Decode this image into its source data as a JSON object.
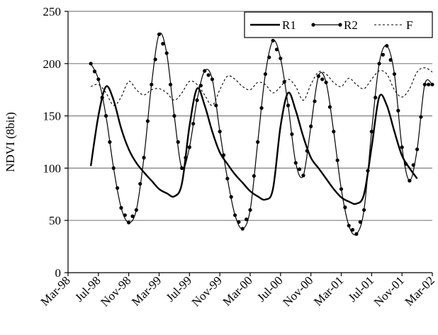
{
  "chart_data": {
    "type": "line",
    "ylabel": "NDVI  (8bit)",
    "xlabel": "",
    "ylim": [
      0,
      250
    ],
    "yticks": [
      0,
      50,
      100,
      150,
      200,
      250
    ],
    "grid": true,
    "legend_position": "top-right",
    "x_ticks": [
      "Mar-98",
      "Jul-98",
      "Nov-98",
      "Mar-99",
      "Jul-99",
      "Nov-99",
      "Mar-00",
      "Jul-00",
      "Nov-00",
      "Mar-01",
      "Jul-01",
      "Nov-01",
      "Mar-02"
    ],
    "series": [
      {
        "name": "R1",
        "style": "solid",
        "points": [
          [
            "Jun-98",
            102
          ],
          [
            "Jul-98",
            150
          ],
          [
            "Aug-98",
            178
          ],
          [
            "Sep-98",
            165
          ],
          [
            "Oct-98",
            138
          ],
          [
            "Nov-98",
            118
          ],
          [
            "Dec-98",
            105
          ],
          [
            "Jan-99",
            96
          ],
          [
            "Feb-99",
            88
          ],
          [
            "Mar-99",
            80
          ],
          [
            "Apr-99",
            76
          ],
          [
            "May-99",
            73
          ],
          [
            "Jun-99",
            85
          ],
          [
            "Jul-99",
            140
          ],
          [
            "Aug-99",
            176
          ],
          [
            "Sep-99",
            160
          ],
          [
            "Oct-99",
            135
          ],
          [
            "Nov-99",
            115
          ],
          [
            "Dec-99",
            104
          ],
          [
            "Jan-00",
            94
          ],
          [
            "Feb-00",
            86
          ],
          [
            "Mar-00",
            78
          ],
          [
            "Apr-00",
            73
          ],
          [
            "May-00",
            70
          ],
          [
            "Jun-00",
            80
          ],
          [
            "Jul-00",
            140
          ],
          [
            "Aug-00",
            172
          ],
          [
            "Sep-00",
            155
          ],
          [
            "Oct-00",
            130
          ],
          [
            "Nov-00",
            110
          ],
          [
            "Dec-00",
            100
          ],
          [
            "Jan-01",
            90
          ],
          [
            "Feb-01",
            80
          ],
          [
            "Mar-01",
            72
          ],
          [
            "Apr-01",
            68
          ],
          [
            "May-01",
            66
          ],
          [
            "Jun-01",
            75
          ],
          [
            "Jul-01",
            120
          ],
          [
            "Aug-01",
            168
          ],
          [
            "Sep-01",
            160
          ],
          [
            "Oct-01",
            135
          ],
          [
            "Nov-01",
            112
          ],
          [
            "Dec-01",
            100
          ],
          [
            "Jan-02",
            90
          ]
        ]
      },
      {
        "name": "R2",
        "style": "solid-dots",
        "points": [
          [
            "Jun-98",
            200
          ],
          [
            "Jul-98",
            185
          ],
          [
            "Aug-98",
            150
          ],
          [
            "Sep-98",
            100
          ],
          [
            "Oct-98",
            62
          ],
          [
            "Nov-98",
            48
          ],
          [
            "Dec-98",
            60
          ],
          [
            "Jan-99",
            110
          ],
          [
            "Feb-99",
            180
          ],
          [
            "Mar-99",
            228
          ],
          [
            "Apr-99",
            210
          ],
          [
            "May-99",
            150
          ],
          [
            "Jun-99",
            100
          ],
          [
            "Jul-99",
            120
          ],
          [
            "Aug-99",
            165
          ],
          [
            "Sep-99",
            193
          ],
          [
            "Oct-99",
            185
          ],
          [
            "Nov-99",
            135
          ],
          [
            "Dec-99",
            90
          ],
          [
            "Jan-00",
            55
          ],
          [
            "Feb-00",
            42
          ],
          [
            "Mar-00",
            60
          ],
          [
            "Apr-00",
            125
          ],
          [
            "May-00",
            190
          ],
          [
            "Jun-00",
            222
          ],
          [
            "Jul-00",
            205
          ],
          [
            "Aug-00",
            160
          ],
          [
            "Sep-00",
            105
          ],
          [
            "Oct-00",
            93
          ],
          [
            "Nov-00",
            140
          ],
          [
            "Dec-00",
            188
          ],
          [
            "Jan-01",
            182
          ],
          [
            "Feb-01",
            135
          ],
          [
            "Mar-01",
            80
          ],
          [
            "Apr-01",
            45
          ],
          [
            "May-01",
            37
          ],
          [
            "Jun-01",
            60
          ],
          [
            "Jul-01",
            135
          ],
          [
            "Aug-01",
            200
          ],
          [
            "Sep-01",
            217
          ],
          [
            "Oct-01",
            190
          ],
          [
            "Nov-01",
            120
          ],
          [
            "Dec-01",
            88
          ],
          [
            "Jan-02",
            118
          ],
          [
            "Feb-02",
            180
          ],
          [
            "Mar-02",
            180
          ]
        ]
      },
      {
        "name": "F",
        "style": "dashed",
        "points": [
          [
            "Jun-98",
            178
          ],
          [
            "Jul-98",
            180
          ],
          [
            "Aug-98",
            172
          ],
          [
            "Sep-98",
            160
          ],
          [
            "Oct-98",
            168
          ],
          [
            "Nov-98",
            183
          ],
          [
            "Dec-98",
            175
          ],
          [
            "Jan-99",
            170
          ],
          [
            "Feb-99",
            175
          ],
          [
            "Mar-99",
            176
          ],
          [
            "Apr-99",
            172
          ],
          [
            "May-99",
            165
          ],
          [
            "Jun-99",
            172
          ],
          [
            "Jul-99",
            183
          ],
          [
            "Aug-99",
            180
          ],
          [
            "Sep-99",
            170
          ],
          [
            "Oct-99",
            160
          ],
          [
            "Nov-99",
            175
          ],
          [
            "Dec-99",
            188
          ],
          [
            "Jan-00",
            185
          ],
          [
            "Feb-00",
            178
          ],
          [
            "Mar-00",
            175
          ],
          [
            "Apr-00",
            182
          ],
          [
            "May-00",
            180
          ],
          [
            "Jun-00",
            172
          ],
          [
            "Jul-00",
            178
          ],
          [
            "Aug-00",
            185
          ],
          [
            "Sep-00",
            178
          ],
          [
            "Oct-00",
            165
          ],
          [
            "Nov-00",
            180
          ],
          [
            "Dec-00",
            192
          ],
          [
            "Jan-01",
            190
          ],
          [
            "Feb-01",
            182
          ],
          [
            "Mar-01",
            178
          ],
          [
            "Apr-01",
            186
          ],
          [
            "May-01",
            180
          ],
          [
            "Jun-01",
            176
          ],
          [
            "Jul-01",
            185
          ],
          [
            "Aug-01",
            193
          ],
          [
            "Sep-01",
            190
          ],
          [
            "Oct-01",
            175
          ],
          [
            "Nov-01",
            168
          ],
          [
            "Dec-01",
            176
          ],
          [
            "Jan-02",
            192
          ],
          [
            "Feb-02",
            196
          ],
          [
            "Mar-02",
            192
          ]
        ]
      }
    ]
  }
}
